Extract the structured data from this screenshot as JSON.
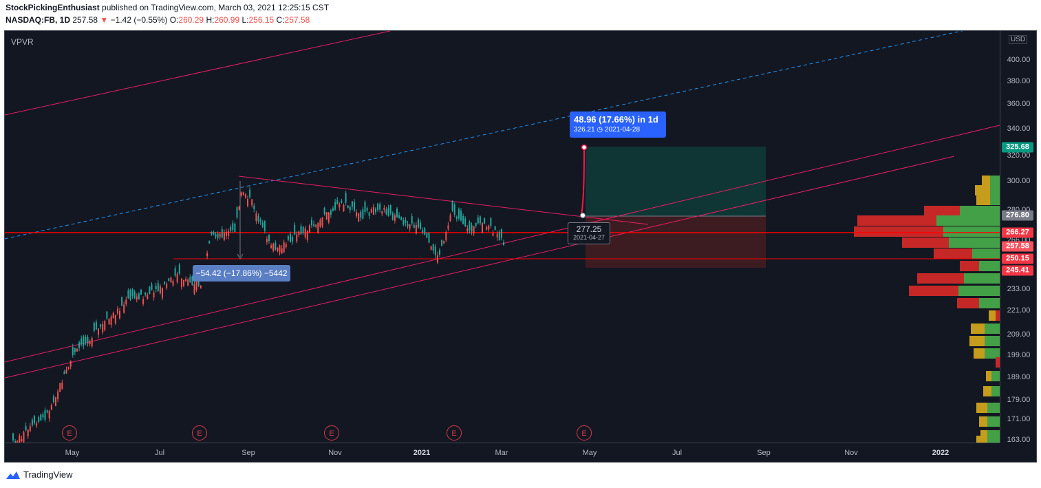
{
  "header": {
    "author": "StockPickingEnthusiast",
    "published_text": " published on TradingView.com, March 03, 2021 12:25:15 CST",
    "symbol": "NASDAQ:FB, 1D",
    "last": "257.58",
    "change_arrow": "▼",
    "change": "−1.42 (−0.55%)",
    "o_label": "O:",
    "o_value": "260.29",
    "h_label": "H:",
    "h_value": "260.99",
    "l_label": "L:",
    "l_value": "256.15",
    "c_label": "C:",
    "c_value": "257.58"
  },
  "indicator": "VPVR",
  "currency": "USD",
  "y_ticks": [
    "400.00",
    "380.00",
    "360.00",
    "340.00",
    "320.00",
    "300.00",
    "280.00",
    "266.00",
    "233.00",
    "221.00",
    "209.00",
    "199.00",
    "189.00",
    "179.00",
    "171.00",
    "163.00"
  ],
  "y_labels": [
    {
      "text": "325.68",
      "color": "#089981"
    },
    {
      "text": "276.80",
      "color": "#787b86"
    },
    {
      "text": "266.27",
      "color": "#f23645"
    },
    {
      "text": "257.58",
      "color": "#f7525f"
    },
    {
      "text": "250.15",
      "color": "#f23645"
    },
    {
      "text": "245.41",
      "color": "#f23645"
    }
  ],
  "x_ticks": [
    "May",
    "Jul",
    "Sep",
    "Nov",
    "2021",
    "Mar",
    "May",
    "Jul",
    "Sep",
    "Nov",
    "2022"
  ],
  "earnings_marker": "E",
  "target_label": {
    "line1": "48.96 (17.66%) in 1d",
    "line2_value": "326.21",
    "line2_icon": "clock-icon",
    "line2_date": "2021-04-28"
  },
  "measure_label": "−54.42 (−17.86%) −5442",
  "price_label": {
    "price": "277.25",
    "date": "2021-04-27"
  },
  "footer": {
    "brand": "TradingView"
  },
  "colors": {
    "background": "#131722",
    "up": "#26a69a",
    "down": "#ef5350",
    "trend": "#e91e63",
    "support": "#ff0000",
    "dashed": "#2196f3",
    "vp_up": "#43a047",
    "vp_down": "#c62828",
    "vp_blue": "#1e88e5",
    "vp_gold": "#c69c1c"
  }
}
